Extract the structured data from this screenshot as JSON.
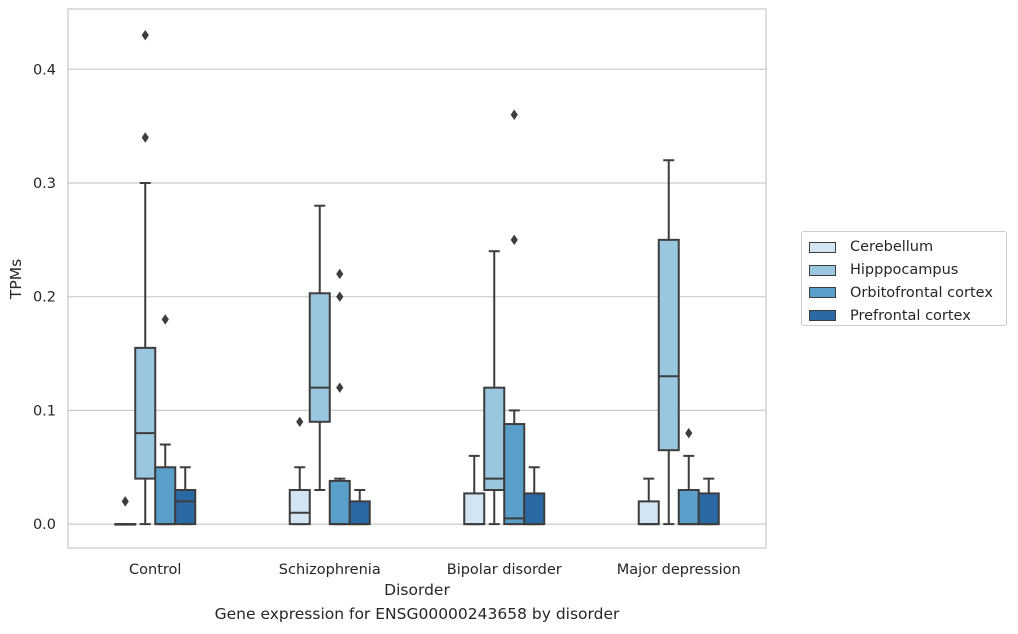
{
  "chart_data": {
    "type": "box",
    "title": "",
    "xlabel": "Disorder",
    "ylabel": "TPMs",
    "caption": "Gene expression for ENSG00000243658 by disorder",
    "ylim": [
      -0.021,
      0.453
    ],
    "yticks": [
      "0.0",
      "0.1",
      "0.2",
      "0.3",
      "0.4"
    ],
    "ytick_values": [
      0.0,
      0.1,
      0.2,
      0.3,
      0.4
    ],
    "grid": "horizontal",
    "legend_position": "right",
    "categories": [
      "Control",
      "Schizophrenia",
      "Bipolar disorder",
      "Major depression"
    ],
    "series": [
      {
        "name": "Cerebellum",
        "color": "#d3e4f3",
        "boxes": [
          {
            "low": 0.0,
            "q1": 0.0,
            "median": 0.0,
            "q3": 0.0,
            "high": 0.0,
            "outliers": [
              0.02
            ]
          },
          {
            "low": 0.0,
            "q1": 0.0,
            "median": 0.01,
            "q3": 0.03,
            "high": 0.05,
            "outliers": [
              0.09
            ]
          },
          {
            "low": 0.0,
            "q1": 0.0,
            "median": 0.0,
            "q3": 0.027,
            "high": 0.06,
            "outliers": []
          },
          {
            "low": 0.0,
            "q1": 0.0,
            "median": 0.0,
            "q3": 0.02,
            "high": 0.04,
            "outliers": []
          }
        ]
      },
      {
        "name": "Hipppocampus",
        "color": "#9ac7e0",
        "boxes": [
          {
            "low": 0.0,
            "q1": 0.04,
            "median": 0.08,
            "q3": 0.155,
            "high": 0.3,
            "outliers": [
              0.34,
              0.43
            ]
          },
          {
            "low": 0.03,
            "q1": 0.09,
            "median": 0.12,
            "q3": 0.203,
            "high": 0.28,
            "outliers": []
          },
          {
            "low": 0.0,
            "q1": 0.03,
            "median": 0.04,
            "q3": 0.12,
            "high": 0.24,
            "outliers": []
          },
          {
            "low": 0.0,
            "q1": 0.065,
            "median": 0.13,
            "q3": 0.25,
            "high": 0.32,
            "outliers": []
          }
        ]
      },
      {
        "name": "Orbitofrontal cortex",
        "color": "#5a9fca",
        "boxes": [
          {
            "low": 0.0,
            "q1": 0.0,
            "median": 0.0,
            "q3": 0.05,
            "high": 0.07,
            "outliers": [
              0.18
            ]
          },
          {
            "low": 0.0,
            "q1": 0.0,
            "median": 0.0,
            "q3": 0.038,
            "high": 0.04,
            "outliers": [
              0.12,
              0.2,
              0.22
            ]
          },
          {
            "low": 0.0,
            "q1": 0.0,
            "median": 0.005,
            "q3": 0.088,
            "high": 0.1,
            "outliers": [
              0.25,
              0.36
            ]
          },
          {
            "low": 0.0,
            "q1": 0.0,
            "median": 0.0,
            "q3": 0.03,
            "high": 0.06,
            "outliers": [
              0.08
            ]
          }
        ]
      },
      {
        "name": "Prefrontal cortex",
        "color": "#2b69a5",
        "boxes": [
          {
            "low": 0.0,
            "q1": 0.0,
            "median": 0.02,
            "q3": 0.03,
            "high": 0.05,
            "outliers": []
          },
          {
            "low": 0.0,
            "q1": 0.0,
            "median": 0.0,
            "q3": 0.02,
            "high": 0.03,
            "outliers": []
          },
          {
            "low": 0.0,
            "q1": 0.0,
            "median": 0.0,
            "q3": 0.027,
            "high": 0.05,
            "outliers": []
          },
          {
            "low": 0.0,
            "q1": 0.0,
            "median": 0.0,
            "q3": 0.027,
            "high": 0.04,
            "outliers": []
          }
        ]
      }
    ]
  }
}
